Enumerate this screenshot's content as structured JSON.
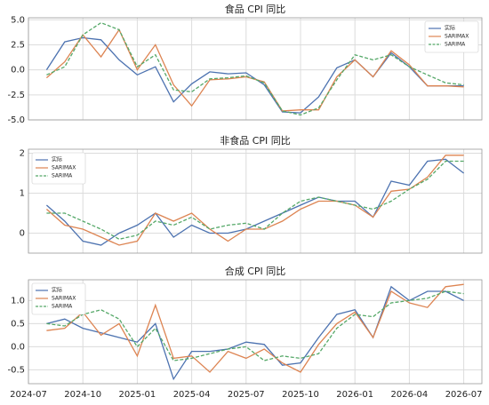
{
  "chart_data": [
    {
      "type": "line",
      "title": "食品 CPI 同比",
      "x": [
        "2024-08",
        "2024-09",
        "2024-10",
        "2024-11",
        "2024-12",
        "2025-01",
        "2025-02",
        "2025-03",
        "2025-04",
        "2025-05",
        "2025-06",
        "2025-07",
        "2025-08",
        "2025-09",
        "2025-10",
        "2025-11",
        "2025-12",
        "2026-01",
        "2026-02",
        "2026-03",
        "2026-04",
        "2026-05",
        "2026-06",
        "2026-07"
      ],
      "xlim": [
        "2024-07",
        "2026-08"
      ],
      "xticks": [
        "2024-07",
        "2024-10",
        "2025-01",
        "2025-04",
        "2025-07",
        "2025-10",
        "2026-01",
        "2026-04",
        "2026-07"
      ],
      "ylim": [
        -5,
        5.2
      ],
      "yticks": [
        {
          "value": 5,
          "label": "5.0"
        },
        2.5,
        {
          "value": 0,
          "label": "0.0"
        },
        -2.5,
        {
          "value": -5,
          "label": "-5.0"
        }
      ],
      "grid": true,
      "legend": "upper right",
      "series": [
        {
          "name": "实际",
          "color": "#4c72b0",
          "linestyle": "solid",
          "values": [
            0.0,
            2.8,
            3.2,
            3.0,
            1.0,
            -0.5,
            0.3,
            -3.2,
            -1.4,
            -0.2,
            -0.4,
            -0.3,
            -1.5,
            -4.2,
            -4.3,
            -2.7,
            0.2,
            1.0,
            -0.7,
            1.7,
            0.3,
            -1.6,
            -1.6,
            -1.6
          ]
        },
        {
          "name": "SARIMAX",
          "color": "#dd8452",
          "linestyle": "solid",
          "values": [
            -0.8,
            0.8,
            3.5,
            1.3,
            4.0,
            0.0,
            2.5,
            -1.5,
            -3.6,
            -1.0,
            -0.9,
            -0.7,
            -1.2,
            -4.1,
            -4.0,
            -4.0,
            -0.7,
            1.0,
            -0.7,
            1.9,
            0.5,
            -1.6,
            -1.6,
            -1.7
          ]
        },
        {
          "name": "SARIMA",
          "color": "#55a868",
          "linestyle": "dashed",
          "values": [
            -0.5,
            0.3,
            3.5,
            4.7,
            4.0,
            0.3,
            1.5,
            -2.0,
            -2.2,
            -0.9,
            -0.8,
            -0.6,
            -1.3,
            -4.1,
            -4.5,
            -3.8,
            -1.0,
            1.5,
            1.0,
            1.5,
            0.3,
            -0.5,
            -1.3,
            -1.5
          ]
        }
      ]
    },
    {
      "type": "line",
      "title": "非食品 CPI 同比",
      "x": [
        "2024-08",
        "2024-09",
        "2024-10",
        "2024-11",
        "2024-12",
        "2025-01",
        "2025-02",
        "2025-03",
        "2025-04",
        "2025-05",
        "2025-06",
        "2025-07",
        "2025-08",
        "2025-09",
        "2025-10",
        "2025-11",
        "2025-12",
        "2026-01",
        "2026-02",
        "2026-03",
        "2026-04",
        "2026-05",
        "2026-06",
        "2026-07"
      ],
      "xlim": [
        "2024-07",
        "2026-08"
      ],
      "xticks": [
        "2024-07",
        "2024-10",
        "2025-01",
        "2025-04",
        "2025-07",
        "2025-10",
        "2026-01",
        "2026-04",
        "2026-07"
      ],
      "ylim": [
        -0.5,
        2.1
      ],
      "yticks": [
        0,
        1,
        2
      ],
      "grid": true,
      "legend": "upper left",
      "series": [
        {
          "name": "实际",
          "color": "#4c72b0",
          "linestyle": "solid",
          "values": [
            0.7,
            0.3,
            -0.2,
            -0.3,
            0.0,
            0.2,
            0.5,
            -0.1,
            0.2,
            0.0,
            0.0,
            0.1,
            0.3,
            0.5,
            0.7,
            0.9,
            0.8,
            0.8,
            0.4,
            1.3,
            1.2,
            1.8,
            1.85,
            1.5
          ]
        },
        {
          "name": "SARIMAX",
          "color": "#dd8452",
          "linestyle": "solid",
          "values": [
            0.6,
            0.2,
            0.1,
            -0.1,
            -0.3,
            -0.2,
            0.5,
            0.3,
            0.5,
            0.1,
            -0.2,
            0.1,
            0.1,
            0.3,
            0.6,
            0.8,
            0.8,
            0.7,
            0.4,
            1.05,
            1.1,
            1.4,
            1.95,
            1.95
          ]
        },
        {
          "name": "SARIMA",
          "color": "#55a868",
          "linestyle": "dashed",
          "values": [
            0.5,
            0.5,
            0.3,
            0.1,
            -0.15,
            -0.05,
            0.3,
            0.2,
            0.4,
            0.1,
            0.2,
            0.25,
            0.1,
            0.5,
            0.8,
            0.9,
            0.8,
            0.7,
            0.6,
            0.8,
            1.1,
            1.35,
            1.8,
            1.8
          ]
        }
      ]
    },
    {
      "type": "line",
      "title": "合成 CPI 同比",
      "x": [
        "2024-08",
        "2024-09",
        "2024-10",
        "2024-11",
        "2024-12",
        "2025-01",
        "2025-02",
        "2025-03",
        "2025-04",
        "2025-05",
        "2025-06",
        "2025-07",
        "2025-08",
        "2025-09",
        "2025-10",
        "2025-11",
        "2025-12",
        "2026-01",
        "2026-02",
        "2026-03",
        "2026-04",
        "2026-05",
        "2026-06",
        "2026-07"
      ],
      "xlim": [
        "2024-07",
        "2026-08"
      ],
      "xticks": [
        "2024-07",
        "2024-10",
        "2025-01",
        "2025-04",
        "2025-07",
        "2025-10",
        "2026-01",
        "2026-04",
        "2026-07"
      ],
      "ylim": [
        -0.8,
        1.45
      ],
      "yticks": [
        {
          "value": 1,
          "label": "1.0"
        },
        0.5,
        {
          "value": 0,
          "label": "0.0"
        },
        -0.5
      ],
      "grid": true,
      "legend": "upper left",
      "series": [
        {
          "name": "实际",
          "color": "#4c72b0",
          "linestyle": "solid",
          "values": [
            0.5,
            0.6,
            0.4,
            0.3,
            0.2,
            0.1,
            0.5,
            -0.7,
            -0.1,
            -0.1,
            -0.05,
            0.1,
            0.05,
            -0.4,
            -0.35,
            0.2,
            0.7,
            0.8,
            0.2,
            1.3,
            1.0,
            1.2,
            1.2,
            1.0
          ]
        },
        {
          "name": "SARIMAX",
          "color": "#dd8452",
          "linestyle": "solid",
          "values": [
            0.35,
            0.4,
            0.75,
            0.25,
            0.5,
            -0.2,
            0.9,
            -0.25,
            -0.2,
            -0.55,
            -0.1,
            -0.25,
            -0.05,
            -0.35,
            -0.55,
            0.05,
            0.5,
            0.75,
            0.2,
            1.2,
            0.95,
            0.85,
            1.3,
            1.35
          ]
        },
        {
          "name": "SARIMA",
          "color": "#55a868",
          "linestyle": "dashed",
          "values": [
            0.5,
            0.45,
            0.7,
            0.8,
            0.6,
            0.0,
            0.4,
            -0.3,
            -0.25,
            -0.15,
            -0.05,
            0.0,
            -0.3,
            -0.2,
            -0.25,
            -0.15,
            0.4,
            0.7,
            0.65,
            0.95,
            1.0,
            1.05,
            1.2,
            1.15
          ]
        }
      ]
    }
  ]
}
